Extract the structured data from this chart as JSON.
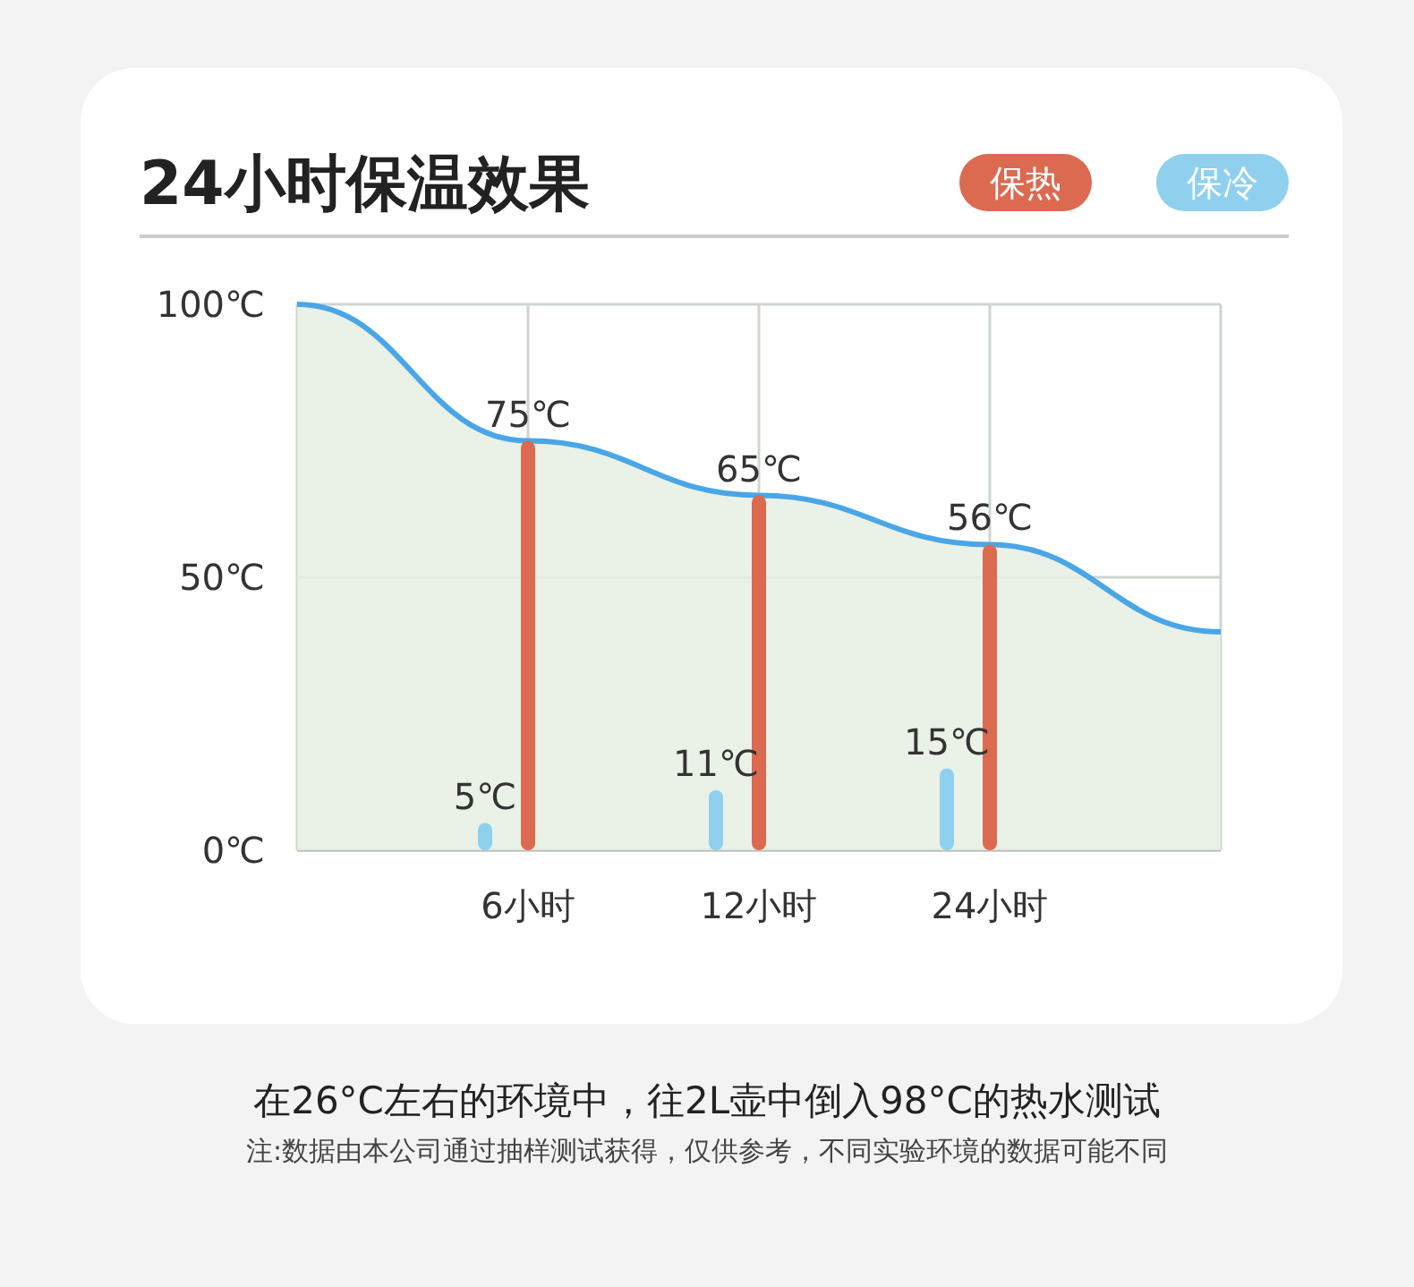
{
  "chart_data": {
    "type": "bar",
    "title": "24小时保温效果",
    "categories": [
      null,
      "6小时",
      "12小时",
      "24小时",
      null
    ],
    "series": [
      {
        "type": "area",
        "color": "#4aa6e6",
        "values": [
          100,
          75,
          65,
          56,
          40
        ]
      },
      {
        "name": "保热",
        "color": "#dc6a50",
        "values": [
          null,
          75,
          65,
          56,
          null
        ],
        "value_labels": [
          null,
          "75℃",
          "65℃",
          "56℃",
          null
        ]
      },
      {
        "name": "保冷",
        "color": "#8fd0ee",
        "values": [
          null,
          5,
          11,
          15,
          null
        ],
        "value_labels": [
          null,
          "5℃",
          "11℃",
          "15℃",
          null
        ]
      }
    ],
    "ylim": [
      0,
      100
    ],
    "yticks": [
      {
        "value": 0,
        "label": "0℃"
      },
      {
        "value": 50,
        "label": "50℃"
      },
      {
        "value": 100,
        "label": "100℃"
      }
    ],
    "grid": true,
    "legend": "top right",
    "annotations": [
      "在26°C左右的环境中，往2L壶中倒入98°C的热水测试",
      "注:数据由本公司通过抽样测试获得，仅供参考，不同实验环境的数据可能不同"
    ]
  }
}
